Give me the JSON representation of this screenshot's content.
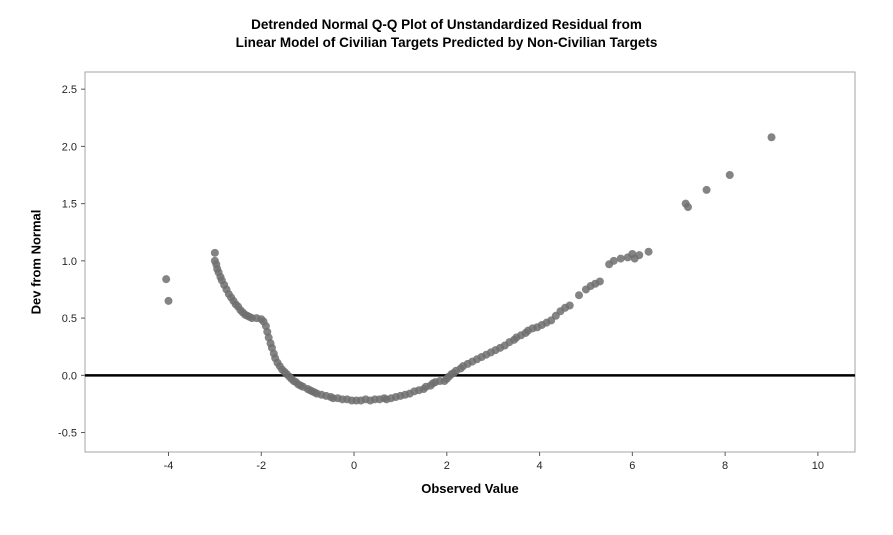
{
  "chart": {
    "title_line1": "Detrended Normal Q-Q Plot of Unstandardized Residual from",
    "title_line2": "Linear Model of Civilian Targets Predicted by Non-Civilian Targets",
    "xlabel": "Observed Value",
    "ylabel": "Dev from Normal"
  },
  "chart_data": {
    "type": "scatter",
    "title": "Detrended Normal Q-Q Plot of Unstandardized Residual from Linear Model of Civilian Targets Predicted by Non-Civilian Targets",
    "xlabel": "Observed Value",
    "ylabel": "Dev from Normal",
    "xlim": [
      -5.8,
      10.8
    ],
    "ylim": [
      -0.67,
      2.65
    ],
    "x_ticks": [
      -4,
      -2,
      0,
      2,
      4,
      6,
      8,
      10
    ],
    "x_tick_labels": [
      "-4",
      "-2",
      "0",
      "2",
      "4",
      "6",
      "8",
      "10"
    ],
    "y_ticks": [
      -0.5,
      0.0,
      0.5,
      1.0,
      1.5,
      2.0,
      2.5
    ],
    "y_tick_labels": [
      "-0.5",
      "0.0",
      "0.5",
      "1.0",
      "1.5",
      "2.0",
      "2.5"
    ],
    "reference_line_y": 0.0,
    "grid": false,
    "legend": "none",
    "point_color": "#6e6e6e",
    "frame_color": "#a6a6a6",
    "reference_line_color": "#000000",
    "points": [
      [
        -4.05,
        0.84
      ],
      [
        -4.0,
        0.65
      ],
      [
        -3.0,
        1.07
      ],
      [
        -3.0,
        1.0
      ],
      [
        -2.97,
        0.97
      ],
      [
        -2.95,
        0.93
      ],
      [
        -2.92,
        0.9
      ],
      [
        -2.88,
        0.86
      ],
      [
        -2.85,
        0.83
      ],
      [
        -2.8,
        0.79
      ],
      [
        -2.75,
        0.75
      ],
      [
        -2.7,
        0.71
      ],
      [
        -2.65,
        0.68
      ],
      [
        -2.6,
        0.65
      ],
      [
        -2.55,
        0.62
      ],
      [
        -2.5,
        0.6
      ],
      [
        -2.45,
        0.57
      ],
      [
        -2.4,
        0.55
      ],
      [
        -2.35,
        0.53
      ],
      [
        -2.3,
        0.52
      ],
      [
        -2.25,
        0.51
      ],
      [
        -2.2,
        0.5
      ],
      [
        -2.1,
        0.5
      ],
      [
        -2.0,
        0.49
      ],
      [
        -1.95,
        0.47
      ],
      [
        -1.9,
        0.43
      ],
      [
        -1.87,
        0.38
      ],
      [
        -1.84,
        0.33
      ],
      [
        -1.8,
        0.28
      ],
      [
        -1.77,
        0.24
      ],
      [
        -1.73,
        0.19
      ],
      [
        -1.7,
        0.15
      ],
      [
        -1.65,
        0.11
      ],
      [
        -1.6,
        0.08
      ],
      [
        -1.55,
        0.05
      ],
      [
        -1.5,
        0.03
      ],
      [
        -1.45,
        0.01
      ],
      [
        -1.4,
        -0.01
      ],
      [
        -1.35,
        -0.03
      ],
      [
        -1.3,
        -0.05
      ],
      [
        -1.25,
        -0.06
      ],
      [
        -1.2,
        -0.08
      ],
      [
        -1.15,
        -0.09
      ],
      [
        -1.1,
        -0.1
      ],
      [
        -1.0,
        -0.12
      ],
      [
        -0.95,
        -0.13
      ],
      [
        -0.9,
        -0.14
      ],
      [
        -0.85,
        -0.15
      ],
      [
        -0.8,
        -0.16
      ],
      [
        -0.7,
        -0.17
      ],
      [
        -0.6,
        -0.18
      ],
      [
        -0.5,
        -0.19
      ],
      [
        -0.45,
        -0.2
      ],
      [
        -0.35,
        -0.2
      ],
      [
        -0.25,
        -0.21
      ],
      [
        -0.15,
        -0.21
      ],
      [
        -0.05,
        -0.22
      ],
      [
        0.05,
        -0.22
      ],
      [
        0.15,
        -0.22
      ],
      [
        0.25,
        -0.21
      ],
      [
        0.35,
        -0.22
      ],
      [
        0.45,
        -0.21
      ],
      [
        0.55,
        -0.21
      ],
      [
        0.65,
        -0.2
      ],
      [
        0.7,
        -0.21
      ],
      [
        0.8,
        -0.2
      ],
      [
        0.9,
        -0.19
      ],
      [
        1.0,
        -0.18
      ],
      [
        1.1,
        -0.17
      ],
      [
        1.2,
        -0.16
      ],
      [
        1.3,
        -0.14
      ],
      [
        1.4,
        -0.13
      ],
      [
        1.5,
        -0.12
      ],
      [
        1.55,
        -0.1
      ],
      [
        1.65,
        -0.09
      ],
      [
        1.7,
        -0.07
      ],
      [
        1.75,
        -0.06
      ],
      [
        1.85,
        -0.05
      ],
      [
        1.95,
        -0.05
      ],
      [
        2.0,
        -0.03
      ],
      [
        2.05,
        -0.01
      ],
      [
        2.1,
        0.01
      ],
      [
        2.15,
        0.02
      ],
      [
        2.2,
        0.04
      ],
      [
        2.3,
        0.06
      ],
      [
        2.35,
        0.08
      ],
      [
        2.45,
        0.1
      ],
      [
        2.55,
        0.12
      ],
      [
        2.65,
        0.14
      ],
      [
        2.75,
        0.16
      ],
      [
        2.85,
        0.18
      ],
      [
        2.95,
        0.2
      ],
      [
        3.05,
        0.22
      ],
      [
        3.15,
        0.24
      ],
      [
        3.25,
        0.26
      ],
      [
        3.35,
        0.29
      ],
      [
        3.45,
        0.31
      ],
      [
        3.5,
        0.33
      ],
      [
        3.6,
        0.35
      ],
      [
        3.7,
        0.37
      ],
      [
        3.75,
        0.39
      ],
      [
        3.85,
        0.41
      ],
      [
        3.95,
        0.42
      ],
      [
        4.05,
        0.44
      ],
      [
        4.15,
        0.46
      ],
      [
        4.25,
        0.48
      ],
      [
        4.35,
        0.52
      ],
      [
        4.45,
        0.56
      ],
      [
        4.55,
        0.59
      ],
      [
        4.65,
        0.61
      ],
      [
        4.85,
        0.7
      ],
      [
        5.0,
        0.75
      ],
      [
        5.1,
        0.78
      ],
      [
        5.2,
        0.8
      ],
      [
        5.3,
        0.82
      ],
      [
        5.5,
        0.97
      ],
      [
        5.6,
        1.0
      ],
      [
        5.75,
        1.02
      ],
      [
        5.9,
        1.03
      ],
      [
        6.0,
        1.06
      ],
      [
        6.05,
        1.02
      ],
      [
        6.15,
        1.05
      ],
      [
        6.35,
        1.08
      ],
      [
        7.15,
        1.5
      ],
      [
        7.2,
        1.47
      ],
      [
        7.6,
        1.62
      ],
      [
        8.1,
        1.75
      ],
      [
        9.0,
        2.08
      ]
    ]
  }
}
